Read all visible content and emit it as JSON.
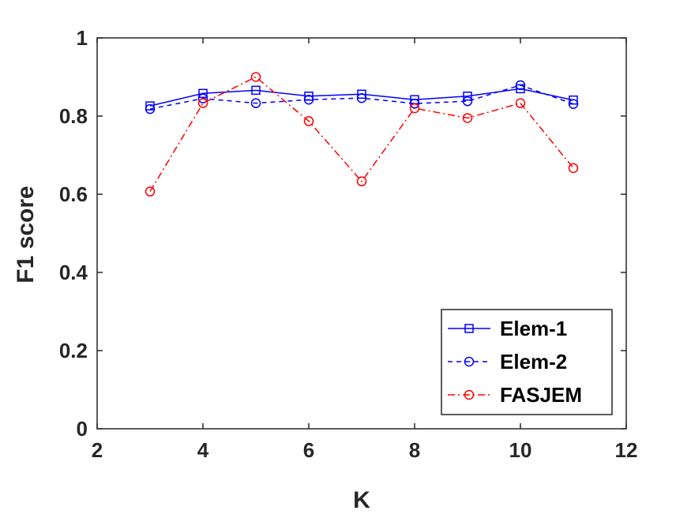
{
  "chart_data": {
    "type": "line",
    "title": "",
    "xlabel": "K",
    "ylabel": "F1 score",
    "xlim": [
      2,
      12
    ],
    "ylim": [
      0,
      1
    ],
    "xticks": [
      "2",
      "4",
      "6",
      "8",
      "10",
      "12"
    ],
    "yticks": [
      "0",
      "0.2",
      "0.4",
      "0.6",
      "0.8",
      "1"
    ],
    "grid": false,
    "legend_position": "bottom-right",
    "x": [
      3,
      4,
      5,
      6,
      7,
      8,
      9,
      10,
      11
    ],
    "series": [
      {
        "name": "Elem-1",
        "color": "#0000ff",
        "line_style": "solid",
        "marker": "square",
        "values": [
          0.826,
          0.858,
          0.866,
          0.851,
          0.856,
          0.842,
          0.851,
          0.87,
          0.841
        ]
      },
      {
        "name": "Elem-2",
        "color": "#0000ff",
        "line_style": "dashed",
        "marker": "circle",
        "values": [
          0.818,
          0.845,
          0.833,
          0.842,
          0.846,
          0.832,
          0.838,
          0.879,
          0.831
        ]
      },
      {
        "name": "FASJEM",
        "color": "#ff0000",
        "line_style": "dashdot",
        "marker": "circle",
        "values": [
          0.607,
          0.833,
          0.9,
          0.787,
          0.633,
          0.82,
          0.795,
          0.833,
          0.667
        ]
      }
    ]
  }
}
